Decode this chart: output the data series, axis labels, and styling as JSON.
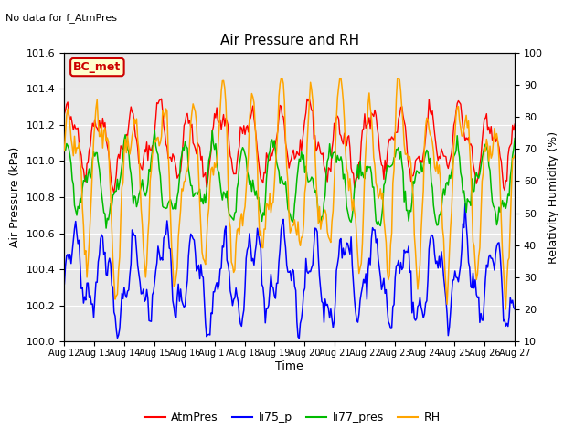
{
  "title": "Air Pressure and RH",
  "subtitle": "No data for f_AtmPres",
  "xlabel": "Time",
  "ylabel_left": "Air Pressure (kPa)",
  "ylabel_right": "Relativity Humidity (%)",
  "box_label": "BC_met",
  "ylim_left": [
    100.0,
    101.6
  ],
  "ylim_right": [
    10,
    100
  ],
  "yticks_left": [
    100.0,
    100.2,
    100.4,
    100.6,
    100.8,
    101.0,
    101.2,
    101.4,
    101.6
  ],
  "yticks_right": [
    10,
    20,
    30,
    40,
    50,
    60,
    70,
    80,
    90,
    100
  ],
  "xtick_labels": [
    "Aug 12",
    "Aug 13",
    "Aug 14",
    "Aug 15",
    "Aug 16",
    "Aug 17",
    "Aug 18",
    "Aug 19",
    "Aug 20",
    "Aug 21",
    "Aug 22",
    "Aug 23",
    "Aug 24",
    "Aug 25",
    "Aug 26",
    "Aug 27"
  ],
  "colors": {
    "AtmPres": "#ff0000",
    "li75_p": "#0000ff",
    "li77_pres": "#00bb00",
    "RH": "#ffa500"
  },
  "legend": [
    {
      "label": "AtmPres",
      "color": "#ff0000"
    },
    {
      "label": "li75_p",
      "color": "#0000ff"
    },
    {
      "label": "li77_pres",
      "color": "#00bb00"
    },
    {
      "label": "RH",
      "color": "#ffa500"
    }
  ],
  "plot_bg_color": "#e8e8e8",
  "fig_bg_color": "#ffffff",
  "box_facecolor": "#ffffcc",
  "box_edgecolor": "#cc0000",
  "box_textcolor": "#cc0000",
  "subtitle_fontsize": 8,
  "title_fontsize": 11,
  "axis_label_fontsize": 9,
  "tick_fontsize": 8,
  "xtick_fontsize": 7
}
